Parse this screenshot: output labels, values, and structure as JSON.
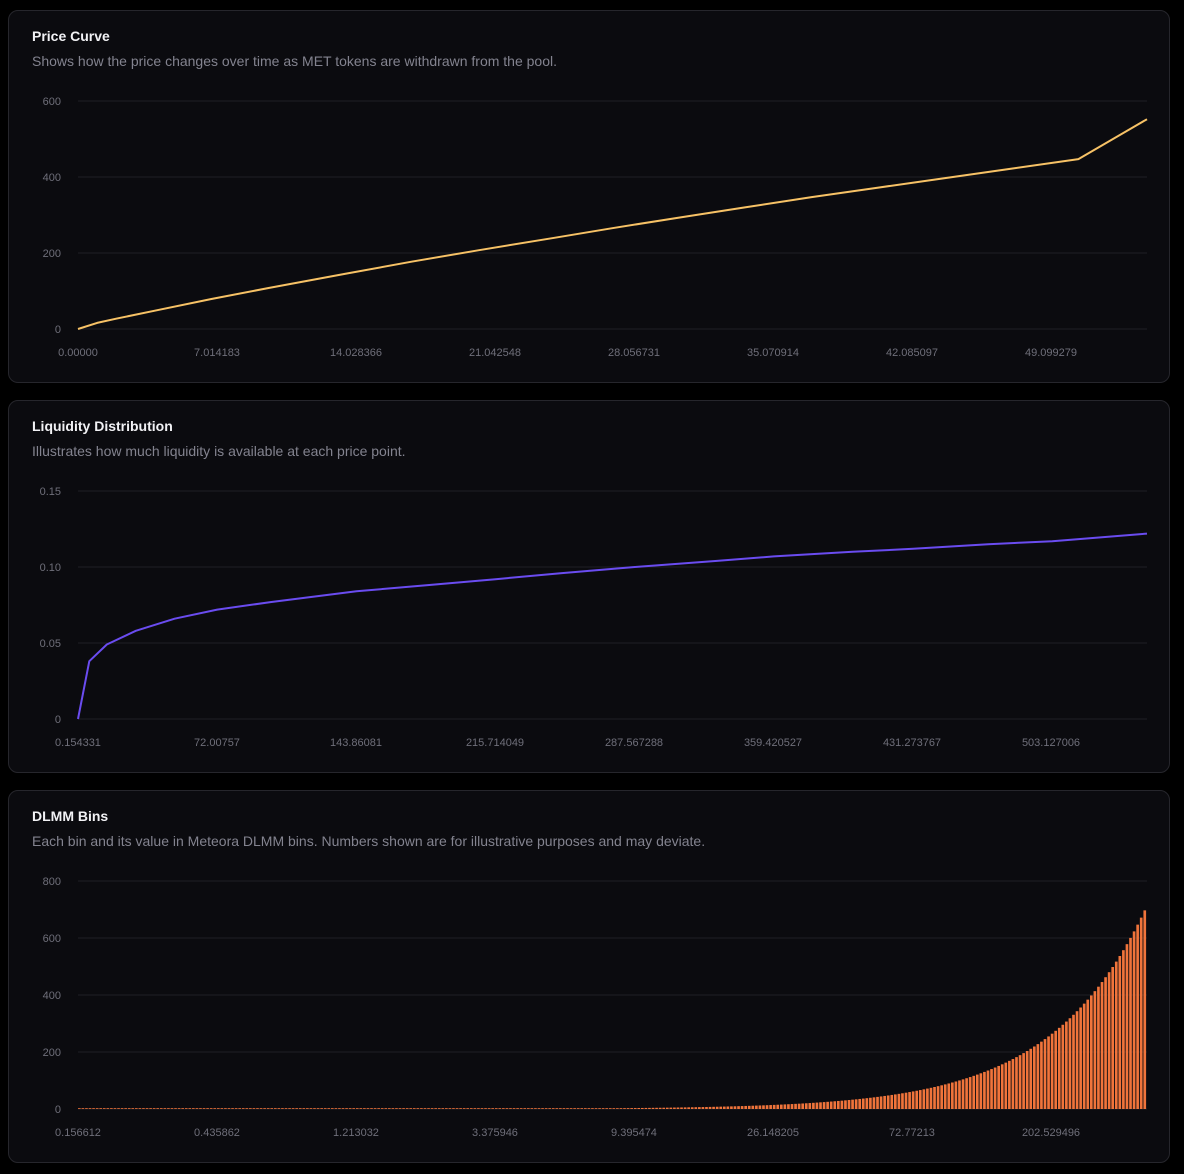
{
  "charts": [
    {
      "title": "Price Curve",
      "description": "Shows how the price changes over time as MET tokens are withdrawn from the pool.",
      "line_color": "#f7c266"
    },
    {
      "title": "Liquidity Distribution",
      "description": "Illustrates how much liquidity is available at each price point.",
      "line_color": "#6a4cf0"
    },
    {
      "title": "DLMM Bins",
      "description": "Each bin and its value in Meteora DLMM bins. Numbers shown are for illustrative purposes and may deviate.",
      "line_color": "#f0743b"
    }
  ],
  "chart_data": [
    {
      "type": "line",
      "title": "Price Curve",
      "x_tick_labels": [
        "0.00000",
        "7.014183",
        "14.028366",
        "21.042548",
        "28.056731",
        "35.070914",
        "42.085097",
        "49.099279"
      ],
      "y_tick_labels": [
        "0",
        "200",
        "400",
        "600"
      ],
      "ylim": [
        0,
        600
      ],
      "xlim": [
        0,
        56.1
      ],
      "grid": true,
      "series": [
        {
          "x": [
            0,
            1,
            2,
            4,
            7,
            10,
            14,
            17.5,
            21,
            25,
            28,
            31.5,
            35,
            38.5,
            42,
            45.5,
            49,
            52.5,
            56.1
          ],
          "values": [
            0,
            16,
            27,
            48,
            79,
            108,
            145,
            177,
            207,
            240,
            265,
            293,
            320,
            347,
            372,
            397,
            422,
            447,
            552
          ]
        }
      ]
    },
    {
      "type": "line",
      "title": "Liquidity Distribution",
      "x_tick_labels": [
        "0.154331",
        "72.00757",
        "143.86081",
        "215.714049",
        "287.567288",
        "359.420527",
        "431.273767",
        "503.127006"
      ],
      "y_tick_labels": [
        "0",
        "0.05",
        "0.10",
        "0.15"
      ],
      "ylim": [
        0,
        0.15
      ],
      "xlim": [
        0.154331,
        552
      ],
      "grid": true,
      "series": [
        {
          "x": [
            0.154331,
            6,
            15,
            30,
            50,
            72,
            100,
            143.9,
            180,
            215.7,
            250,
            287.6,
            330,
            359.4,
            400,
            431.3,
            470,
            503.1,
            552
          ],
          "values": [
            0,
            0.038,
            0.049,
            0.058,
            0.066,
            0.072,
            0.077,
            0.084,
            0.088,
            0.092,
            0.096,
            0.1,
            0.104,
            0.107,
            0.11,
            0.112,
            0.115,
            0.117,
            0.122
          ]
        }
      ]
    },
    {
      "type": "bar",
      "title": "DLMM Bins",
      "x_tick_labels": [
        "0.156612",
        "0.435862",
        "1.213032",
        "3.375946",
        "9.395474",
        "26.148205",
        "72.77213",
        "202.529496"
      ],
      "y_tick_labels": [
        "0",
        "200",
        "400",
        "600",
        "800"
      ],
      "ylim": [
        0,
        800
      ],
      "bin_count": 300,
      "bin_value_range": [
        0.01,
        697
      ],
      "grid": true
    }
  ]
}
